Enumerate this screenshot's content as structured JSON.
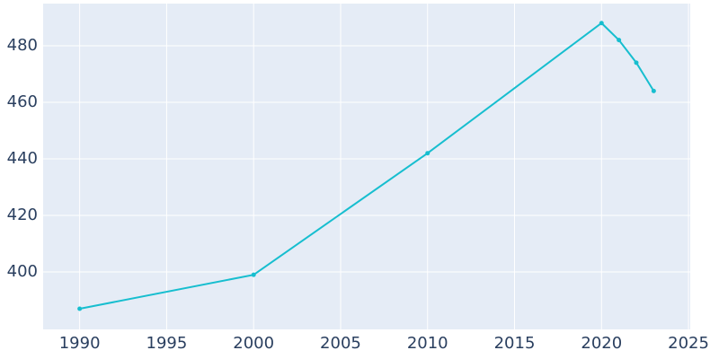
{
  "chart_data": {
    "type": "line",
    "x": [
      1990,
      2000,
      2010,
      2020,
      2021,
      2022,
      2023
    ],
    "series": [
      {
        "color": "#17becf",
        "values": [
          387,
          399,
          442,
          488,
          482,
          474,
          464
        ]
      }
    ],
    "xlim": [
      1987.9,
      2025.1
    ],
    "xticks": [
      1990,
      1995,
      2000,
      2005,
      2010,
      2015,
      2020,
      2025
    ],
    "ylim": [
      379.7,
      494.9
    ],
    "yticks": [
      400,
      420,
      440,
      460,
      480
    ],
    "grid": true
  }
}
